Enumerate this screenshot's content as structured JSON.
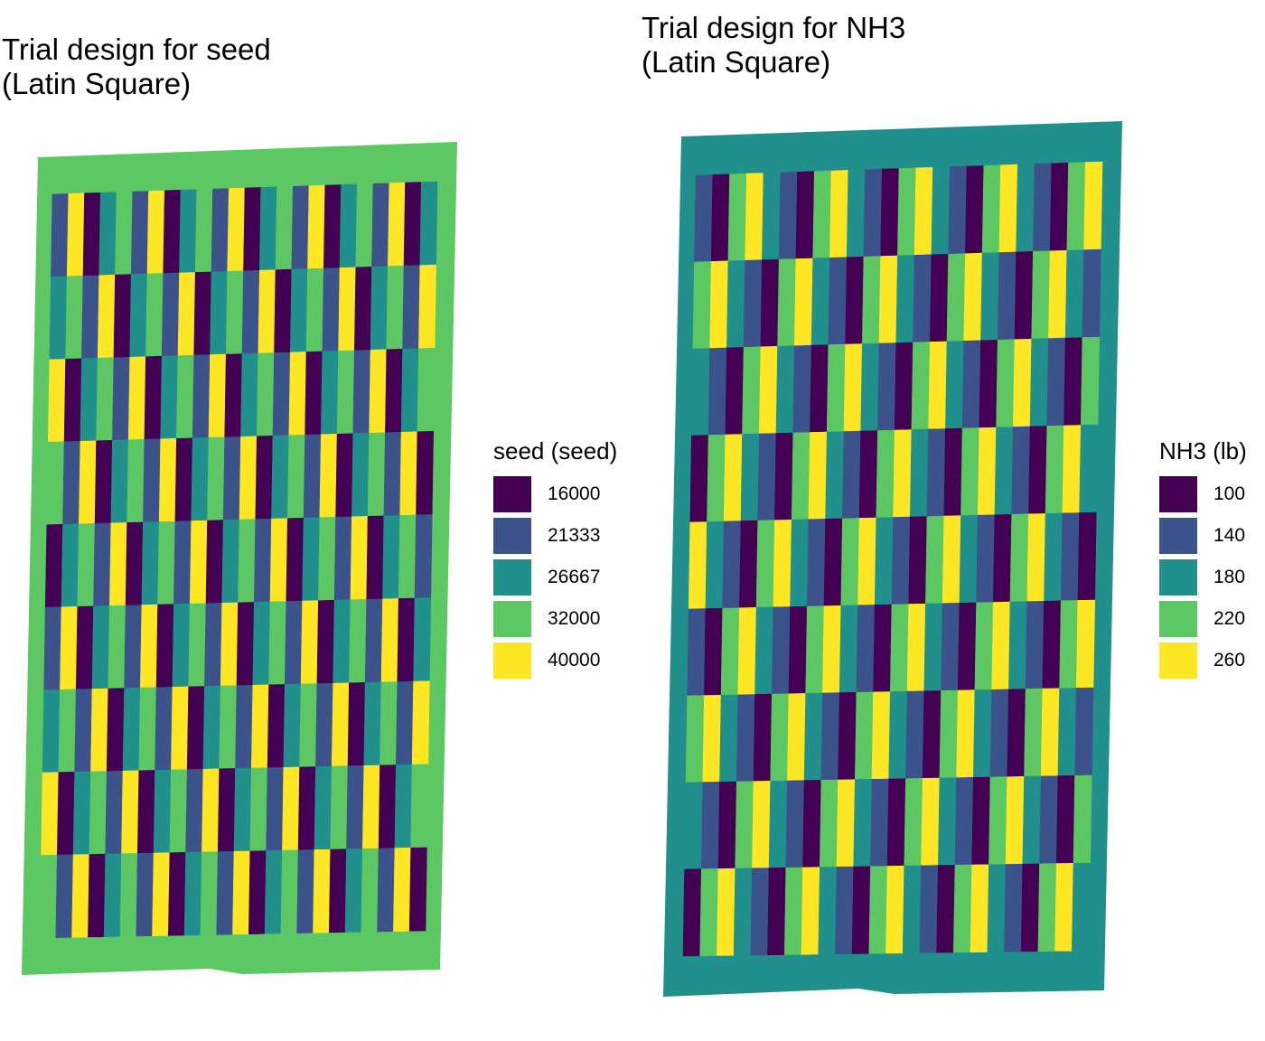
{
  "chart_data": [
    {
      "type": "heatmap",
      "title": "Trial design for seed\n(Latin Square)",
      "legend_title": "seed (seed)",
      "legend_placement": "right",
      "grid": false,
      "background_level": "32000",
      "levels": [
        {
          "label": "16000",
          "color": "#440154"
        },
        {
          "label": "21333",
          "color": "#3B528B"
        },
        {
          "label": "26667",
          "color": "#21908C"
        },
        {
          "label": "32000",
          "color": "#5DC863"
        },
        {
          "label": "40000",
          "color": "#FDE725"
        }
      ],
      "rows": 9,
      "columns": 24,
      "row_offsets": [
        0,
        3,
        1,
        4,
        2,
        0,
        3,
        1,
        4
      ],
      "column_pattern": [
        1,
        4,
        0,
        2,
        3
      ]
    },
    {
      "type": "heatmap",
      "title": "Trial design for NH3\n(Latin Square)",
      "legend_title": "NH3 (lb)",
      "legend_placement": "right",
      "grid": false,
      "background_level": "180",
      "levels": [
        {
          "label": "100",
          "color": "#440154"
        },
        {
          "label": "140",
          "color": "#3B528B"
        },
        {
          "label": "180",
          "color": "#21908C"
        },
        {
          "label": "220",
          "color": "#5DC863"
        },
        {
          "label": "260",
          "color": "#FDE725"
        }
      ],
      "rows": 9,
      "columns": 24,
      "row_offsets": [
        0,
        2,
        4,
        1,
        3,
        0,
        2,
        4,
        1
      ],
      "column_pattern": [
        1,
        0,
        3,
        4,
        2
      ]
    }
  ]
}
